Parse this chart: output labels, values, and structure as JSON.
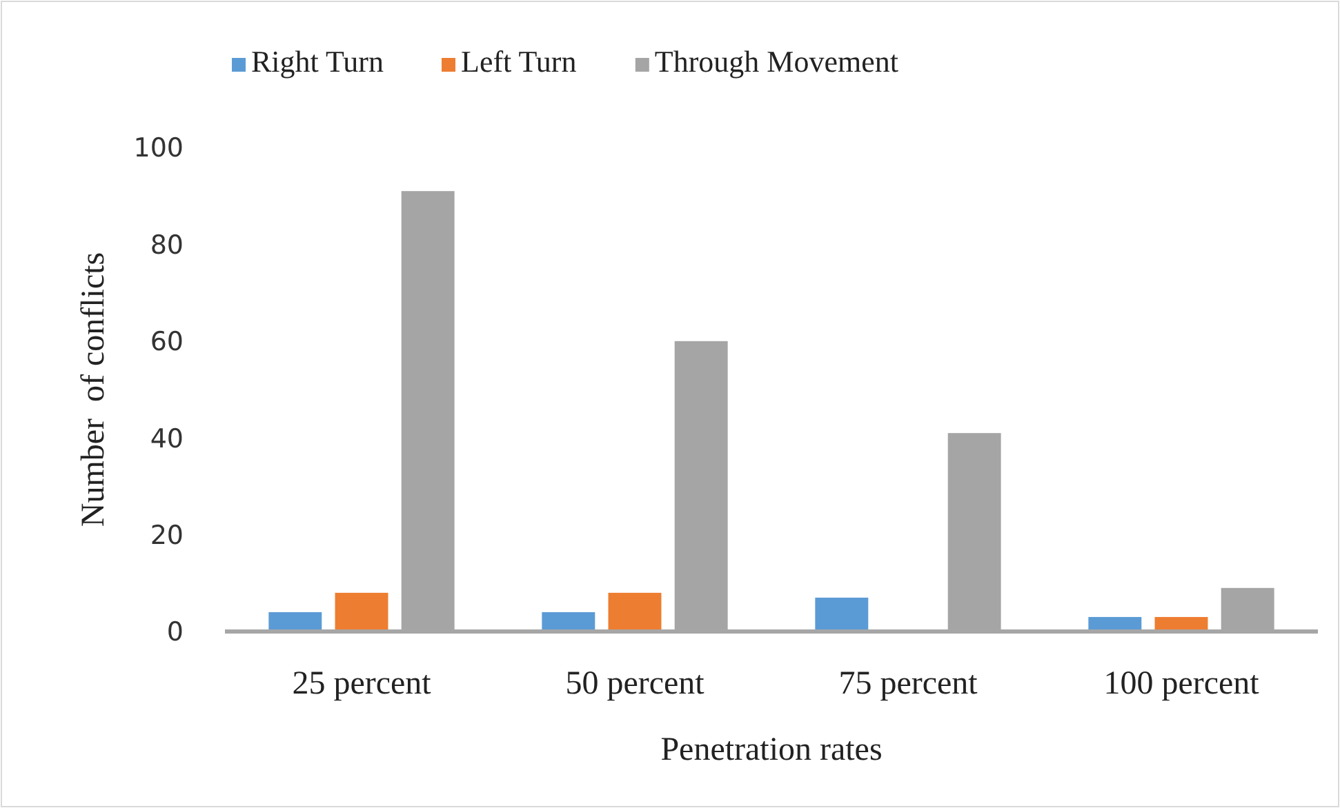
{
  "chart_data": {
    "type": "bar",
    "xlabel": "Penetration rates",
    "ylabel": "Number  of conflicts",
    "categories": [
      "25 percent",
      "50 percent",
      "75 percent",
      "100 percent"
    ],
    "series": [
      {
        "name": "Right Turn",
        "color": "#5b9bd5",
        "values": [
          4,
          4,
          7,
          3
        ]
      },
      {
        "name": "Left Turn",
        "color": "#ed7d31",
        "values": [
          8,
          8,
          0,
          3
        ]
      },
      {
        "name": "Through Movement",
        "color": "#a5a5a5",
        "values": [
          91,
          60,
          41,
          9
        ]
      }
    ],
    "ylim": [
      0,
      100
    ],
    "yticks": [
      0,
      20,
      40,
      60,
      80,
      100
    ],
    "grid": false,
    "legend": "top"
  }
}
